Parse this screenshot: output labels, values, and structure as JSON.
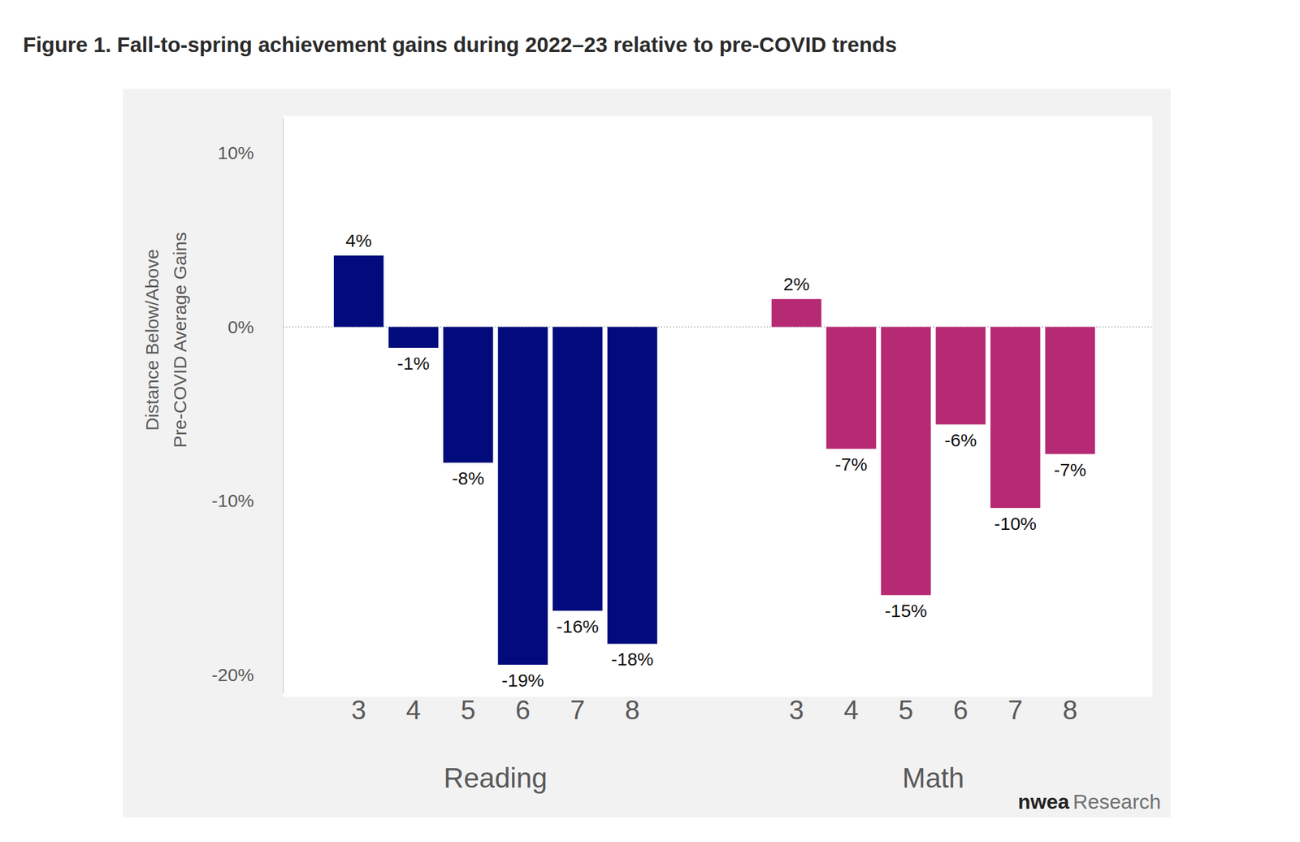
{
  "chart_data": {
    "type": "bar",
    "title": "Figure 1. Fall-to-spring achievement gains during 2022–23 relative to pre-COVID trends",
    "ylabel": [
      "Distance Below/Above",
      "Pre-COVID Average Gains"
    ],
    "categories": [
      "3",
      "4",
      "5",
      "6",
      "7",
      "8"
    ],
    "series": [
      {
        "name": "Reading",
        "color": "#020b7b",
        "values": [
          4.1,
          -1.2,
          -7.8,
          -19.4,
          -16.3,
          -18.2
        ],
        "value_labels": [
          "4%",
          "-1%",
          "-8%",
          "-19%",
          "-16%",
          "-18%"
        ]
      },
      {
        "name": "Math",
        "color": "#b62a74",
        "values": [
          1.6,
          -7.0,
          -15.4,
          -5.6,
          -10.4,
          -7.3
        ],
        "value_labels": [
          "2%",
          "-7%",
          "-15%",
          "-6%",
          "-10%",
          "-7%"
        ]
      }
    ],
    "ylim": [
      -21,
      12
    ],
    "yticks": [
      {
        "value": -20,
        "label": "-20%"
      },
      {
        "value": -10,
        "label": "-10%"
      },
      {
        "value": 0,
        "label": "0%"
      },
      {
        "value": 10,
        "label": "10%"
      }
    ],
    "grid": false,
    "data_labels": true,
    "credit": [
      "nwea",
      "Research"
    ]
  }
}
